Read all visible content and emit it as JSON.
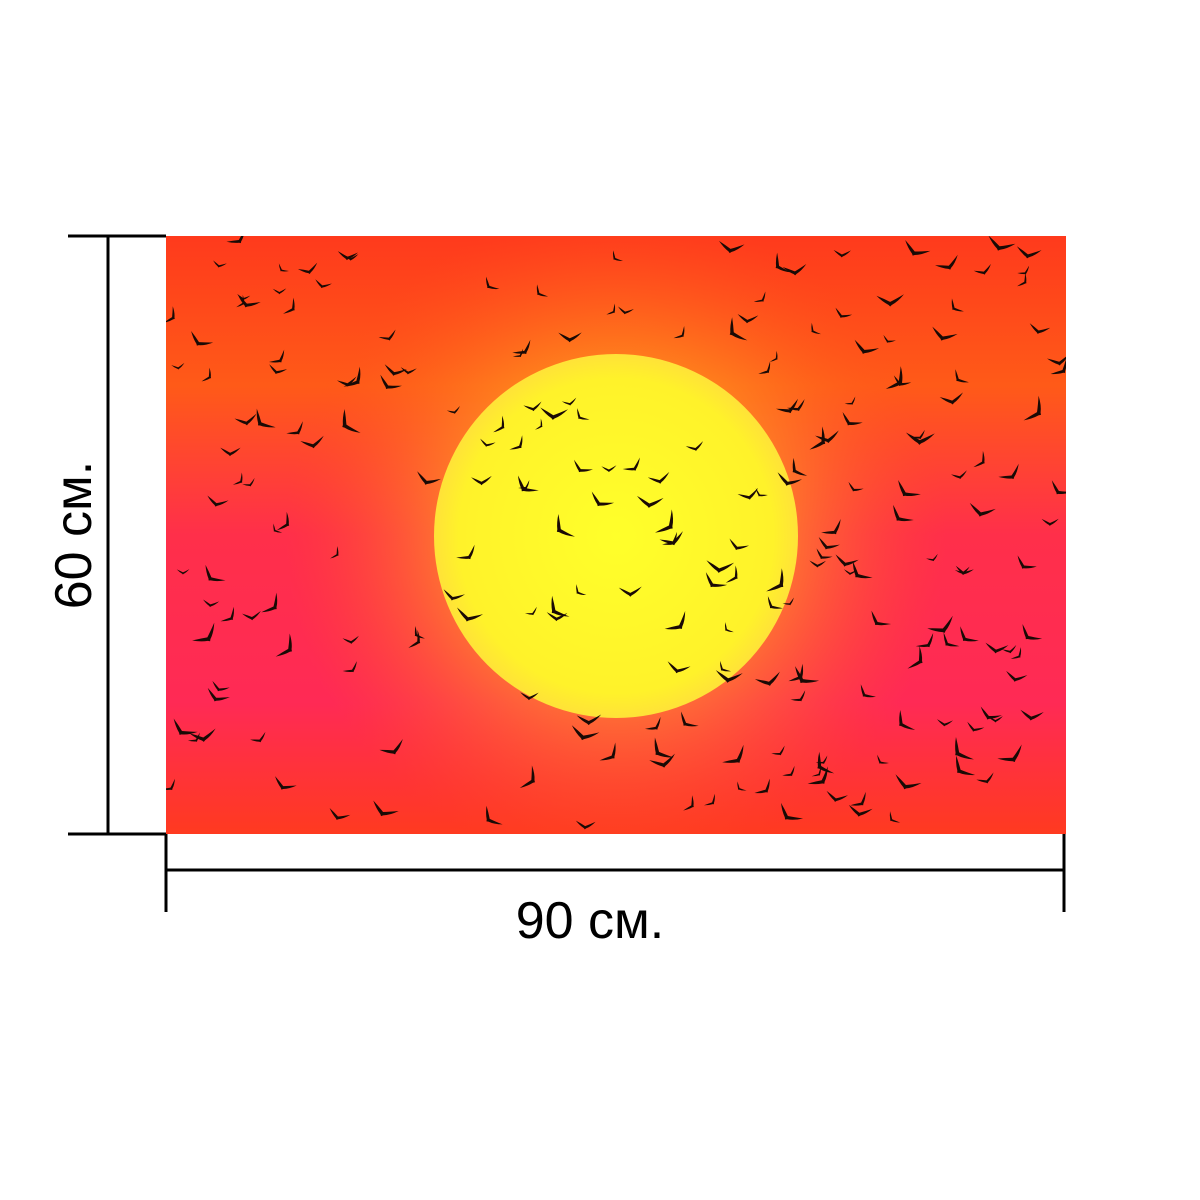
{
  "dimensions": {
    "width_label": "90 см.",
    "height_label": "60 см."
  },
  "picture": {
    "sky_colors": [
      "#ff3a1c",
      "#ff2a55",
      "#ff6a1a"
    ],
    "sun_color": "#ffff2a",
    "sun_glow_color": "#ffe23a",
    "bird_color": "#1a0a05"
  }
}
